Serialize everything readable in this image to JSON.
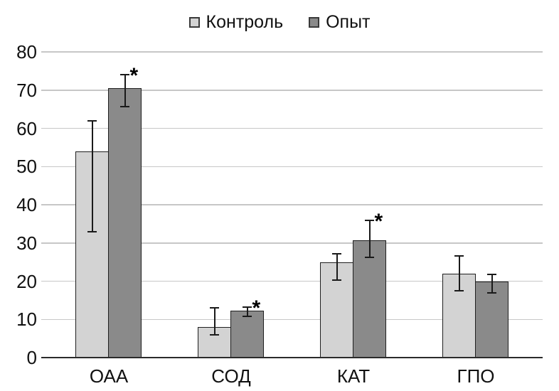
{
  "chart_data": {
    "type": "bar",
    "title": "",
    "xlabel": "",
    "ylabel": "",
    "categories": [
      "ОАА",
      "СОД",
      "КАТ",
      "ГПО"
    ],
    "series": [
      {
        "name": "Контроль",
        "color": "#d3d3d3",
        "values": [
          54,
          8,
          25,
          22
        ],
        "error_low": [
          33,
          6,
          20.3,
          17.5
        ],
        "error_high": [
          62,
          13,
          27.2,
          26.6
        ],
        "significant": [
          false,
          false,
          false,
          false
        ]
      },
      {
        "name": "Опыт",
        "color": "#8a8a8a",
        "values": [
          70.5,
          12.3,
          30.7,
          20
        ],
        "error_low": [
          65.7,
          10.8,
          26.2,
          17
        ],
        "error_high": [
          74,
          13.3,
          35.9,
          21.8
        ],
        "significant": [
          true,
          true,
          true,
          false
        ]
      }
    ],
    "yticks": [
      0,
      10,
      20,
      30,
      40,
      50,
      60,
      70,
      80
    ],
    "ylim": [
      0,
      80
    ],
    "grid": true,
    "legend_position": "top",
    "significance_marker": "*"
  },
  "colors": {
    "background": "#ffffff",
    "bar_light": "#d3d3d3",
    "bar_dark": "#8a8a8a",
    "bar_border": "#1f1f1f",
    "gridline": "#c7c7c7",
    "axis_line": "#2b2b2b",
    "error_bar": "#1a1a1a",
    "text": "#111111"
  }
}
